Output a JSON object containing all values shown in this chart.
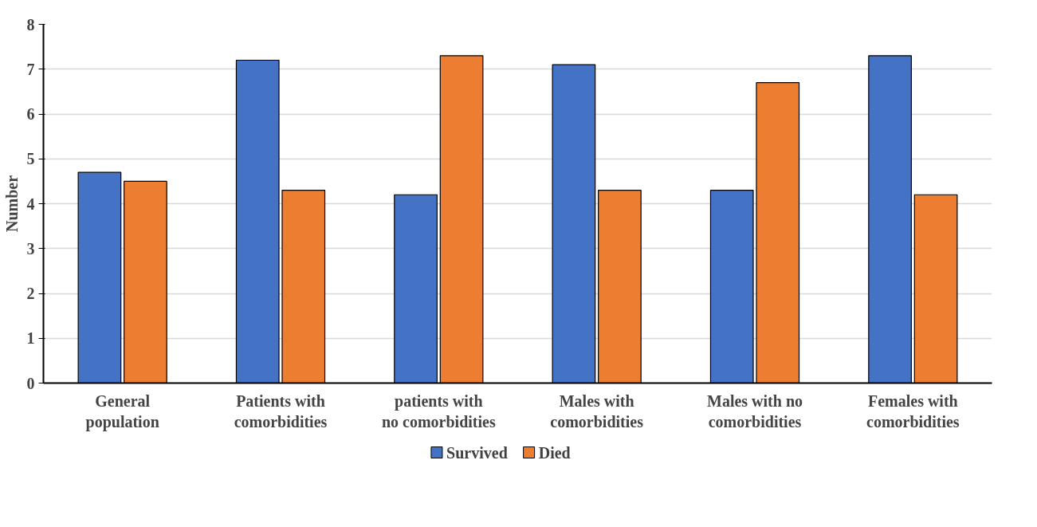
{
  "chart_data": {
    "type": "bar",
    "ylabel": "Number",
    "categories": [
      "General population",
      "Patients with comorbidities",
      "patients with no comorbidities",
      "Males with comorbidities",
      "Males with no comorbidities",
      "Females with comorbidities"
    ],
    "series": [
      {
        "name": "Survived",
        "color": "#4472c4",
        "values": [
          4.7,
          7.2,
          4.2,
          7.1,
          4.3,
          7.3
        ]
      },
      {
        "name": "Died",
        "color": "#ed7d31",
        "values": [
          4.5,
          4.3,
          7.3,
          4.3,
          6.7,
          4.2
        ]
      }
    ],
    "ylim": [
      0,
      8
    ],
    "yticks": [
      0,
      1,
      2,
      3,
      4,
      5,
      6,
      7,
      8
    ],
    "grid": "y",
    "legend": "bottom"
  }
}
